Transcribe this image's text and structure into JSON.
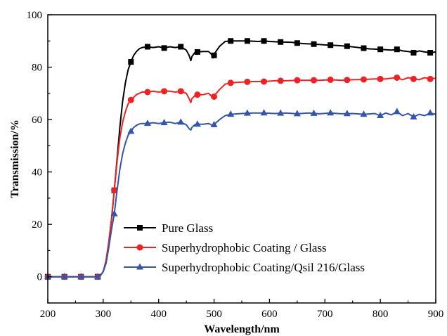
{
  "chart_data": {
    "type": "line",
    "title": "",
    "xlabel": "Wavelength/nm",
    "ylabel": "Transmission/%",
    "xlim": [
      200,
      900
    ],
    "ylim": [
      -10,
      100
    ],
    "x_ticks": [
      200,
      300,
      400,
      500,
      600,
      700,
      800,
      900
    ],
    "y_ticks": [
      0,
      20,
      40,
      60,
      80,
      100
    ],
    "grid": false,
    "legend_position": "bottom-right",
    "series": [
      {
        "name": "Pure Glass",
        "color": "#000000",
        "marker": "square",
        "x": [
          200,
          230,
          260,
          290,
          295,
          300,
          305,
          310,
          315,
          320,
          325,
          330,
          335,
          340,
          345,
          350,
          355,
          360,
          365,
          370,
          380,
          390,
          400,
          410,
          420,
          430,
          440,
          450,
          455,
          458,
          460,
          465,
          470,
          480,
          490,
          495,
          498,
          502,
          510,
          520,
          530,
          550,
          560,
          580,
          590,
          600,
          620,
          640,
          650,
          660,
          680,
          700,
          720,
          740,
          760,
          780,
          800,
          820,
          830,
          840,
          850,
          860,
          870,
          880,
          890,
          900
        ],
        "y": [
          0,
          0,
          0,
          0,
          0.5,
          2,
          6,
          13,
          22,
          33,
          45,
          57,
          67,
          74,
          79,
          82,
          84.5,
          86,
          87,
          87.5,
          87.8,
          87.5,
          87.8,
          87.3,
          87.8,
          87.5,
          87.8,
          86.5,
          84.5,
          82.5,
          84,
          85.5,
          85.8,
          86,
          86,
          85,
          83.5,
          85.5,
          88,
          89.8,
          90,
          90,
          90,
          89.8,
          90,
          89.8,
          89.6,
          89.5,
          89.2,
          89,
          88.8,
          88.5,
          88.3,
          88,
          87.5,
          87,
          86.8,
          86.5,
          86.8,
          86.2,
          86,
          85.5,
          86.2,
          85.8,
          85.5,
          85.8
        ],
        "marker_x": [
          200,
          230,
          260,
          290,
          320,
          350,
          380,
          410,
          440,
          470,
          500,
          530,
          560,
          590,
          620,
          650,
          680,
          710,
          740,
          770,
          800,
          830,
          860,
          890
        ]
      },
      {
        "name": "Superhydrophobic Coating / Glass",
        "color": "#ee2222",
        "marker": "circle",
        "x": [
          200,
          230,
          260,
          290,
          295,
          300,
          305,
          310,
          315,
          320,
          325,
          330,
          335,
          340,
          345,
          350,
          355,
          360,
          365,
          370,
          380,
          390,
          400,
          410,
          420,
          430,
          440,
          450,
          455,
          458,
          460,
          465,
          470,
          480,
          490,
          495,
          498,
          502,
          510,
          520,
          530,
          550,
          570,
          590,
          610,
          630,
          650,
          670,
          690,
          710,
          730,
          750,
          770,
          790,
          810,
          820,
          830,
          840,
          850,
          860,
          870,
          880,
          890,
          900
        ],
        "y": [
          0,
          0,
          0,
          0,
          0.5,
          2,
          6,
          13,
          22,
          33,
          44,
          53,
          59,
          63,
          66,
          67.5,
          68.5,
          69.5,
          70,
          70.5,
          70.5,
          70.8,
          70.5,
          70.8,
          70.8,
          70.5,
          70.8,
          70,
          68,
          66.5,
          68,
          69,
          69.5,
          69.5,
          70,
          69,
          68,
          69.5,
          71.5,
          73.5,
          74,
          74.3,
          74.5,
          74.5,
          74.8,
          74.8,
          75,
          75,
          75,
          75.2,
          75,
          75.2,
          75.3,
          75.5,
          75.5,
          75.8,
          76,
          75.2,
          76,
          75.5,
          75.2,
          76,
          75.5,
          75.8
        ],
        "marker_x": [
          200,
          230,
          260,
          290,
          320,
          350,
          380,
          410,
          440,
          470,
          500,
          530,
          560,
          590,
          620,
          650,
          680,
          710,
          740,
          770,
          800,
          830,
          860,
          890
        ]
      },
      {
        "name": "Superhydrophobic Coating/Qsil 216/Glass",
        "color": "#3355aa",
        "marker": "triangle",
        "x": [
          200,
          230,
          260,
          290,
          295,
          300,
          305,
          310,
          315,
          320,
          325,
          330,
          335,
          340,
          345,
          350,
          355,
          360,
          365,
          370,
          380,
          390,
          400,
          410,
          420,
          430,
          440,
          450,
          455,
          458,
          460,
          465,
          470,
          480,
          490,
          495,
          498,
          502,
          510,
          520,
          530,
          550,
          570,
          590,
          610,
          630,
          650,
          670,
          690,
          710,
          730,
          750,
          770,
          790,
          800,
          810,
          820,
          830,
          840,
          850,
          860,
          870,
          880,
          890,
          900
        ],
        "y": [
          0,
          0,
          0,
          0,
          0.5,
          2,
          5,
          11,
          18,
          24,
          33,
          41,
          47,
          51,
          54,
          55.5,
          57,
          57.8,
          58.3,
          58.5,
          58.5,
          58.8,
          58.5,
          58.8,
          59,
          58.5,
          59,
          58,
          56.5,
          56,
          57,
          58,
          58.2,
          58.2,
          58.5,
          58,
          57.5,
          58.5,
          60,
          61.5,
          62,
          62.3,
          62.5,
          62.5,
          62.3,
          62.5,
          62.2,
          62.5,
          62.2,
          62.5,
          62.2,
          62.3,
          62,
          62.3,
          61.5,
          62.5,
          61.8,
          63,
          61.5,
          62.3,
          61,
          62,
          61.5,
          62.5,
          62
        ],
        "marker_x": [
          200,
          230,
          260,
          290,
          320,
          350,
          380,
          410,
          440,
          470,
          500,
          530,
          560,
          590,
          620,
          650,
          680,
          710,
          740,
          770,
          800,
          830,
          860,
          890
        ]
      }
    ]
  }
}
